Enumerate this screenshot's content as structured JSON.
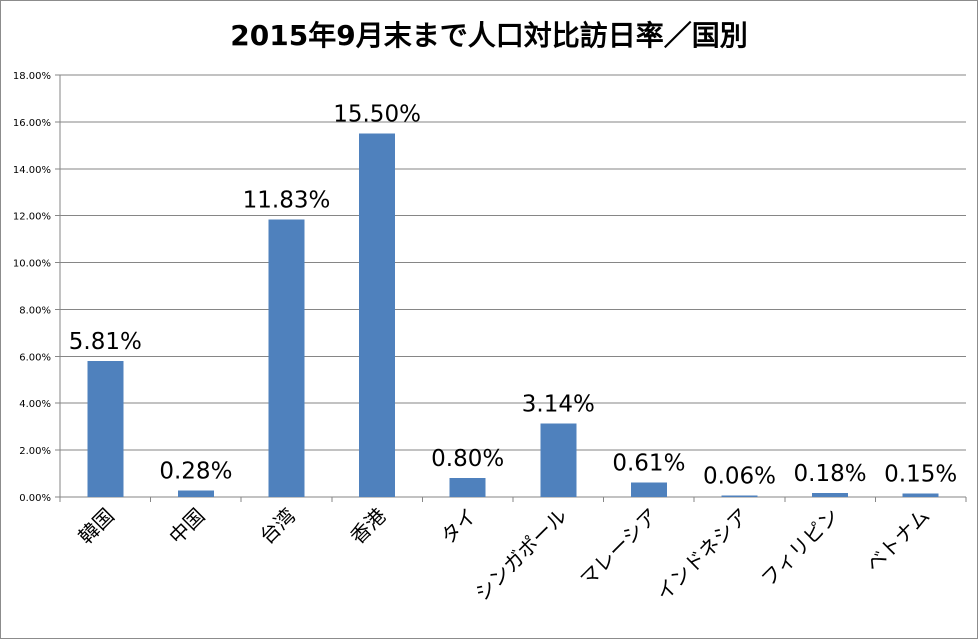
{
  "chart_data": {
    "type": "bar",
    "title": "2015年9月末まで人口対比訪日率／国別",
    "xlabel": "",
    "ylabel": "",
    "categories": [
      "韓国",
      "中国",
      "台湾",
      "香港",
      "タイ",
      "シンガポール",
      "マレーシア",
      "インドネシア",
      "フィリピン",
      "ベトナム"
    ],
    "values": [
      5.81,
      0.28,
      11.83,
      15.5,
      0.8,
      3.14,
      0.61,
      0.06,
      0.18,
      0.15
    ],
    "data_labels": [
      "5.81%",
      "0.28%",
      "11.83%",
      "15.50%",
      "0.80%",
      "3.14%",
      "0.61%",
      "0.06%",
      "0.18%",
      "0.15%"
    ],
    "ylim": [
      0,
      18
    ],
    "yticks": [
      0,
      2,
      4,
      6,
      8,
      10,
      12,
      14,
      16,
      18
    ],
    "ytick_labels": [
      "0.00%",
      "2.00%",
      "4.00%",
      "6.00%",
      "8.00%",
      "10.00%",
      "12.00%",
      "14.00%",
      "16.00%",
      "18.00%"
    ],
    "bar_color": "#4f81bd",
    "gridline_color": "#868686",
    "grid": true,
    "legend": "none"
  }
}
